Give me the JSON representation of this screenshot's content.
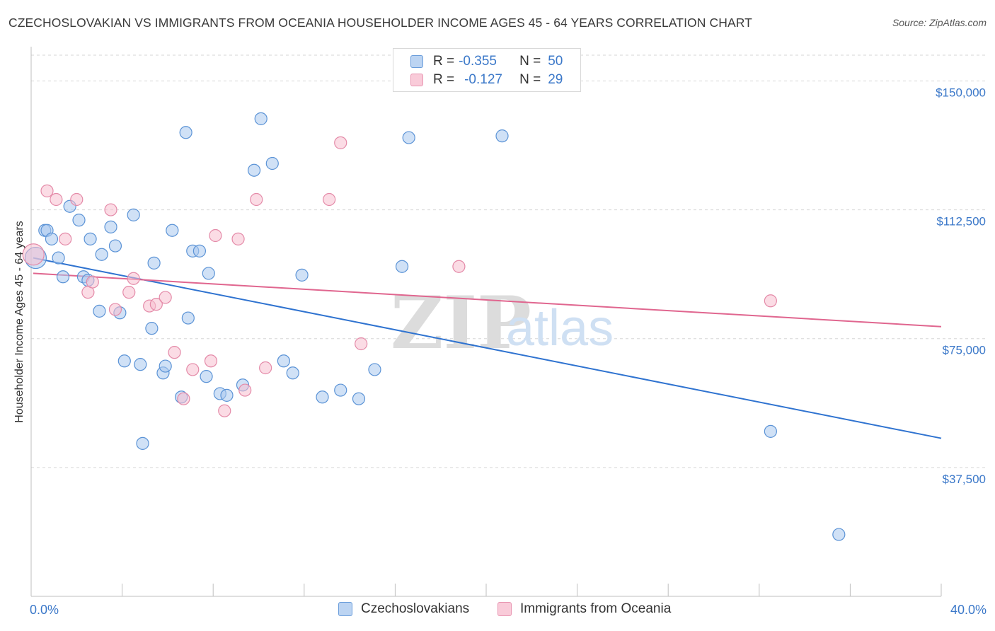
{
  "title": "CZECHOSLOVAKIAN VS IMMIGRANTS FROM OCEANIA HOUSEHOLDER INCOME AGES 45 - 64 YEARS CORRELATION CHART",
  "source": "Source: ZipAtlas.com",
  "legend": {
    "rows": [
      {
        "r_label": "R =",
        "r_value": "-0.355",
        "n_label": "N =",
        "n_value": "50"
      },
      {
        "r_label": "R =",
        "r_value": "-0.127",
        "n_label": "N =",
        "n_value": "29"
      }
    ]
  },
  "bottom_legend": [
    "Czechoslovakians",
    "Immigrants from Oceania"
  ],
  "x_axis": {
    "min_label": "0.0%",
    "max_label": "40.0%"
  },
  "watermark": {
    "zip": "ZIP",
    "atlas": "atlas"
  },
  "colors": {
    "blue_fill": "#aac8ee",
    "blue_stroke": "#5b93d6",
    "blue_line": "#2f73d0",
    "pink_fill": "#f7bfd0",
    "pink_stroke": "#e48aa8",
    "pink_line": "#e0668f",
    "tick_text": "#3b78c9"
  },
  "chart_data": {
    "type": "scatter",
    "title": "CZECHOSLOVAKIAN VS IMMIGRANTS FROM OCEANIA HOUSEHOLDER INCOME AGES 45 - 64 YEARS CORRELATION CHART",
    "xlabel": "",
    "ylabel": "Householder Income Ages 45 - 64 years",
    "xlim": [
      0,
      40
    ],
    "ylim": [
      0,
      157500
    ],
    "y_ticks": [
      37500,
      75000,
      112500,
      150000
    ],
    "y_tick_labels": [
      "$37,500",
      "$75,000",
      "$112,500",
      "$150,000"
    ],
    "grid": true,
    "legend_position": "top-center",
    "series": [
      {
        "name": "Czechoslovakians",
        "x_unit": "%",
        "points": [
          [
            0.2,
            98500
          ],
          [
            0.6,
            106500
          ],
          [
            0.7,
            106500
          ],
          [
            0.9,
            104000
          ],
          [
            1.2,
            98500
          ],
          [
            1.4,
            93000
          ],
          [
            1.7,
            113500
          ],
          [
            2.1,
            109500
          ],
          [
            2.3,
            93000
          ],
          [
            2.5,
            92000
          ],
          [
            2.6,
            104000
          ],
          [
            3.0,
            83000
          ],
          [
            3.1,
            99500
          ],
          [
            3.5,
            107500
          ],
          [
            3.7,
            102000
          ],
          [
            3.9,
            82500
          ],
          [
            4.1,
            68500
          ],
          [
            4.5,
            111000
          ],
          [
            4.8,
            67500
          ],
          [
            4.9,
            44500
          ],
          [
            5.3,
            78000
          ],
          [
            5.4,
            97000
          ],
          [
            5.8,
            65000
          ],
          [
            5.9,
            67000
          ],
          [
            6.2,
            106500
          ],
          [
            6.6,
            58000
          ],
          [
            6.8,
            135000
          ],
          [
            6.9,
            81000
          ],
          [
            7.1,
            100500
          ],
          [
            7.4,
            100500
          ],
          [
            7.7,
            64000
          ],
          [
            7.8,
            94000
          ],
          [
            8.3,
            59000
          ],
          [
            8.6,
            58500
          ],
          [
            9.3,
            61500
          ],
          [
            9.8,
            124000
          ],
          [
            10.1,
            139000
          ],
          [
            10.6,
            126000
          ],
          [
            11.1,
            68500
          ],
          [
            11.5,
            65000
          ],
          [
            11.9,
            93500
          ],
          [
            12.8,
            58000
          ],
          [
            13.6,
            60000
          ],
          [
            14.4,
            57500
          ],
          [
            15.1,
            66000
          ],
          [
            16.3,
            96000
          ],
          [
            16.6,
            133500
          ],
          [
            20.7,
            134000
          ],
          [
            32.5,
            48000
          ],
          [
            35.5,
            18000
          ]
        ],
        "trend": {
          "x": [
            0,
            40
          ],
          "y": [
            98500,
            46000
          ]
        }
      },
      {
        "name": "Immigrants from Oceania",
        "x_unit": "%",
        "points": [
          [
            0.1,
            99500
          ],
          [
            0.7,
            118000
          ],
          [
            1.1,
            115500
          ],
          [
            1.5,
            104000
          ],
          [
            2.0,
            115500
          ],
          [
            2.5,
            88500
          ],
          [
            2.7,
            91500
          ],
          [
            3.5,
            112500
          ],
          [
            3.7,
            83500
          ],
          [
            4.3,
            88500
          ],
          [
            4.5,
            92500
          ],
          [
            5.2,
            84500
          ],
          [
            5.5,
            85000
          ],
          [
            5.9,
            87000
          ],
          [
            6.3,
            71000
          ],
          [
            6.7,
            57500
          ],
          [
            7.1,
            66000
          ],
          [
            7.9,
            68500
          ],
          [
            8.1,
            105000
          ],
          [
            8.5,
            54000
          ],
          [
            9.1,
            104000
          ],
          [
            9.4,
            60000
          ],
          [
            9.9,
            115500
          ],
          [
            10.3,
            66500
          ],
          [
            13.1,
            115500
          ],
          [
            13.6,
            132000
          ],
          [
            14.5,
            73500
          ],
          [
            18.8,
            96000
          ],
          [
            32.5,
            86000
          ]
        ],
        "trend": {
          "x": [
            0,
            40
          ],
          "y": [
            94000,
            78500
          ]
        }
      }
    ]
  }
}
